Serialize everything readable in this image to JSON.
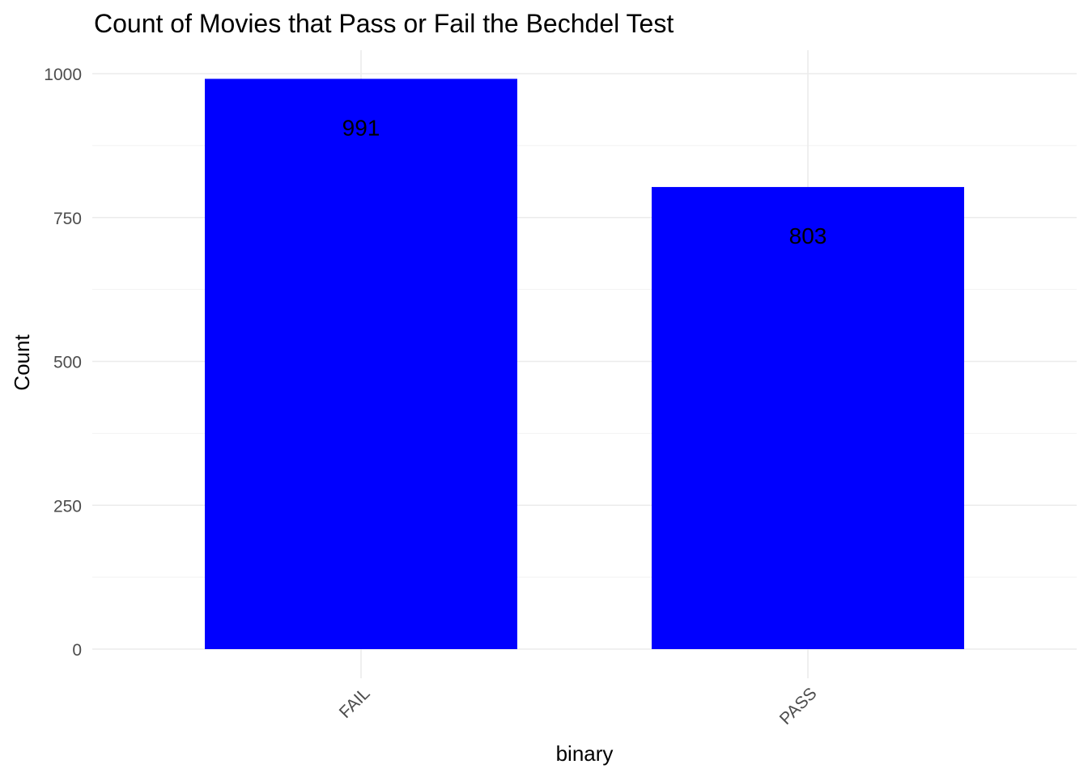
{
  "chart_data": {
    "type": "bar",
    "title": "Count of Movies that Pass or Fail the Bechdel Test",
    "xlabel": "binary",
    "ylabel": "Count",
    "categories": [
      "FAIL",
      "PASS"
    ],
    "values": [
      991,
      803
    ],
    "data_labels": [
      "991",
      "803"
    ],
    "ylim": [
      0,
      1000
    ],
    "yticks": [
      0,
      250,
      500,
      750,
      1000
    ],
    "ytick_labels": [
      "0",
      "250",
      "500",
      "750",
      "1000"
    ],
    "bar_color": "#0000ff",
    "grid": true,
    "legend": "none"
  }
}
